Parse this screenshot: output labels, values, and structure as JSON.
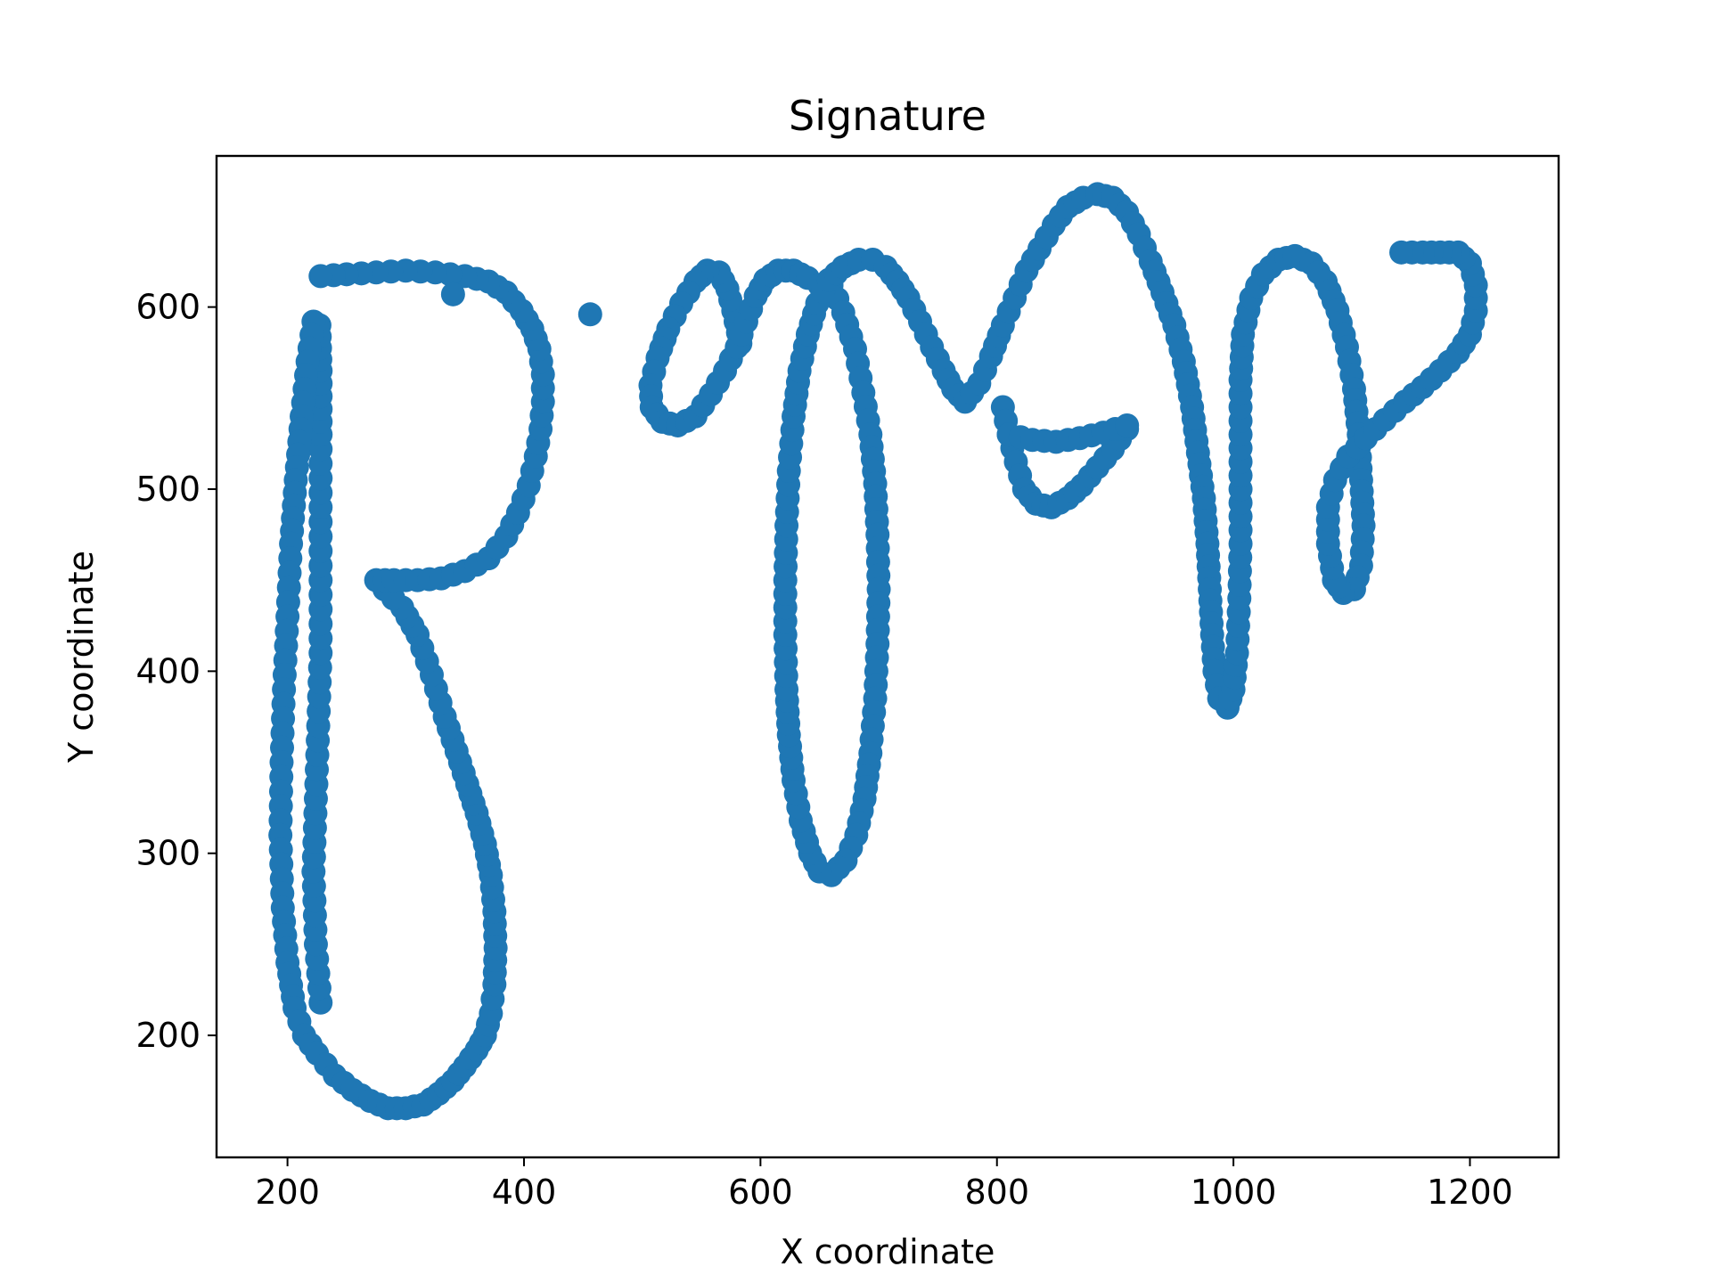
{
  "chart_data": {
    "type": "scatter",
    "title": "Signature",
    "xlabel": "X coordinate",
    "ylabel": "Y coordinate",
    "xlim": [
      140,
      1275
    ],
    "ylim": [
      133,
      683
    ],
    "xticks": [
      200,
      400,
      600,
      800,
      1000,
      1200
    ],
    "yticks": [
      200,
      300,
      400,
      500,
      600
    ],
    "grid": false,
    "marker_color": "#1f77b4",
    "strokes": [
      {
        "points": [
          [
            228,
            218
          ],
          [
            224,
            250
          ],
          [
            222,
            290
          ],
          [
            224,
            330
          ],
          [
            226,
            370
          ],
          [
            228,
            410
          ],
          [
            228,
            450
          ],
          [
            228,
            490
          ],
          [
            228,
            530
          ],
          [
            228,
            565
          ],
          [
            227,
            590
          ],
          [
            222,
            592
          ],
          [
            217,
            570
          ],
          [
            212,
            540
          ],
          [
            207,
            505
          ],
          [
            203,
            470
          ],
          [
            200,
            430
          ],
          [
            197,
            390
          ],
          [
            195,
            350
          ],
          [
            194,
            310
          ],
          [
            196,
            270
          ],
          [
            200,
            240
          ],
          [
            206,
            215
          ],
          [
            214,
            200
          ],
          [
            225,
            190
          ],
          [
            240,
            178
          ],
          [
            255,
            170
          ],
          [
            270,
            164
          ],
          [
            285,
            160
          ],
          [
            300,
            160
          ],
          [
            315,
            162
          ],
          [
            328,
            168
          ],
          [
            340,
            175
          ],
          [
            350,
            183
          ],
          [
            360,
            192
          ],
          [
            367,
            200
          ],
          [
            372,
            212
          ],
          [
            375,
            228
          ],
          [
            376,
            248
          ],
          [
            375,
            268
          ],
          [
            372,
            288
          ],
          [
            367,
            305
          ],
          [
            360,
            322
          ],
          [
            352,
            338
          ],
          [
            343,
            356
          ],
          [
            333,
            375
          ],
          [
            322,
            398
          ],
          [
            310,
            420
          ],
          [
            297,
            435
          ],
          [
            282,
            445
          ],
          [
            275,
            450
          ],
          [
            290,
            450
          ],
          [
            310,
            450
          ],
          [
            330,
            451
          ],
          [
            350,
            455
          ],
          [
            370,
            462
          ],
          [
            385,
            474
          ],
          [
            395,
            487
          ],
          [
            404,
            502
          ],
          [
            410,
            518
          ],
          [
            414,
            533
          ],
          [
            416,
            548
          ],
          [
            416,
            563
          ],
          [
            413,
            577
          ],
          [
            407,
            588
          ],
          [
            398,
            598
          ],
          [
            385,
            608
          ],
          [
            370,
            614
          ],
          [
            350,
            617
          ],
          [
            325,
            619
          ],
          [
            300,
            620
          ],
          [
            275,
            619
          ],
          [
            250,
            618
          ],
          [
            228,
            617
          ]
        ]
      },
      {
        "points": [
          [
            340,
            607
          ]
        ]
      },
      {
        "points": [
          [
            456,
            596
          ]
        ]
      },
      {
        "points": [
          [
            583,
            580
          ],
          [
            577,
            598
          ],
          [
            572,
            610
          ],
          [
            565,
            619
          ],
          [
            555,
            620
          ],
          [
            545,
            614
          ],
          [
            533,
            602
          ],
          [
            522,
            588
          ],
          [
            513,
            572
          ],
          [
            507,
            557
          ],
          [
            508,
            545
          ],
          [
            517,
            537
          ],
          [
            530,
            535
          ],
          [
            545,
            540
          ],
          [
            558,
            552
          ],
          [
            570,
            565
          ],
          [
            580,
            578
          ],
          [
            588,
            592
          ],
          [
            596,
            606
          ],
          [
            604,
            615
          ],
          [
            615,
            620
          ],
          [
            628,
            620
          ],
          [
            640,
            616
          ],
          [
            650,
            612
          ],
          [
            660,
            612
          ]
        ]
      },
      {
        "points": [
          [
            660,
            612
          ],
          [
            670,
            597
          ],
          [
            680,
            577
          ],
          [
            687,
            553
          ],
          [
            693,
            530
          ],
          [
            697,
            503
          ],
          [
            699,
            475
          ],
          [
            700,
            445
          ],
          [
            699,
            415
          ],
          [
            697,
            385
          ],
          [
            693,
            355
          ],
          [
            688,
            330
          ],
          [
            681,
            310
          ],
          [
            672,
            296
          ],
          [
            660,
            288
          ],
          [
            650,
            290
          ],
          [
            642,
            300
          ],
          [
            634,
            318
          ],
          [
            628,
            340
          ],
          [
            624,
            365
          ],
          [
            622,
            390
          ],
          [
            621,
            420
          ],
          [
            621,
            450
          ],
          [
            622,
            480
          ],
          [
            624,
            510
          ],
          [
            628,
            540
          ],
          [
            633,
            565
          ],
          [
            640,
            585
          ],
          [
            648,
            602
          ],
          [
            658,
            615
          ],
          [
            670,
            622
          ],
          [
            683,
            626
          ],
          [
            695,
            626
          ],
          [
            706,
            622
          ],
          [
            716,
            614
          ]
        ]
      },
      {
        "points": [
          [
            716,
            614
          ],
          [
            725,
            605
          ],
          [
            735,
            592
          ],
          [
            745,
            578
          ],
          [
            755,
            565
          ],
          [
            763,
            555
          ],
          [
            773,
            548
          ],
          [
            785,
            558
          ],
          [
            795,
            573
          ],
          [
            805,
            590
          ],
          [
            815,
            605
          ],
          [
            825,
            620
          ],
          [
            836,
            632
          ],
          [
            848,
            645
          ],
          [
            860,
            655
          ],
          [
            873,
            660
          ],
          [
            885,
            662
          ],
          [
            898,
            660
          ],
          [
            910,
            652
          ],
          [
            920,
            640
          ],
          [
            930,
            625
          ],
          [
            940,
            608
          ],
          [
            950,
            590
          ],
          [
            958,
            570
          ],
          [
            965,
            545
          ],
          [
            970,
            520
          ],
          [
            975,
            495
          ],
          [
            978,
            470
          ],
          [
            980,
            445
          ],
          [
            982,
            420
          ],
          [
            984,
            400
          ],
          [
            988,
            385
          ]
        ]
      },
      {
        "points": [
          [
            988,
            385
          ],
          [
            995,
            380
          ],
          [
            1000,
            390
          ],
          [
            1003,
            410
          ],
          [
            1005,
            440
          ],
          [
            1006,
            470
          ],
          [
            1006,
            500
          ],
          [
            1006,
            530
          ],
          [
            1006,
            560
          ],
          [
            1008,
            585
          ],
          [
            1015,
            605
          ],
          [
            1025,
            618
          ],
          [
            1038,
            626
          ],
          [
            1052,
            628
          ],
          [
            1066,
            624
          ],
          [
            1078,
            614
          ],
          [
            1088,
            598
          ],
          [
            1096,
            578
          ],
          [
            1102,
            555
          ],
          [
            1106,
            530
          ],
          [
            1108,
            505
          ],
          [
            1110,
            480
          ],
          [
            1108,
            458
          ],
          [
            1102,
            445
          ],
          [
            1093,
            443
          ],
          [
            1085,
            450
          ],
          [
            1080,
            470
          ],
          [
            1080,
            490
          ],
          [
            1086,
            505
          ],
          [
            1097,
            518
          ],
          [
            1112,
            528
          ],
          [
            1128,
            538
          ],
          [
            1145,
            548
          ],
          [
            1160,
            556
          ],
          [
            1175,
            565
          ],
          [
            1190,
            575
          ],
          [
            1200,
            585
          ],
          [
            1205,
            598
          ],
          [
            1205,
            612
          ],
          [
            1200,
            624
          ],
          [
            1190,
            630
          ],
          [
            1175,
            630
          ],
          [
            1160,
            630
          ],
          [
            1142,
            630
          ]
        ]
      },
      {
        "points": [
          [
            805,
            545
          ],
          [
            810,
            530
          ],
          [
            816,
            515
          ],
          [
            823,
            500
          ],
          [
            833,
            492
          ],
          [
            846,
            490
          ],
          [
            860,
            495
          ],
          [
            872,
            502
          ],
          [
            885,
            512
          ],
          [
            898,
            522
          ],
          [
            910,
            533
          ]
        ]
      },
      {
        "points": [
          [
            810,
            530
          ],
          [
            830,
            527
          ],
          [
            850,
            526
          ],
          [
            870,
            528
          ],
          [
            890,
            531
          ],
          [
            910,
            535
          ]
        ]
      }
    ]
  }
}
